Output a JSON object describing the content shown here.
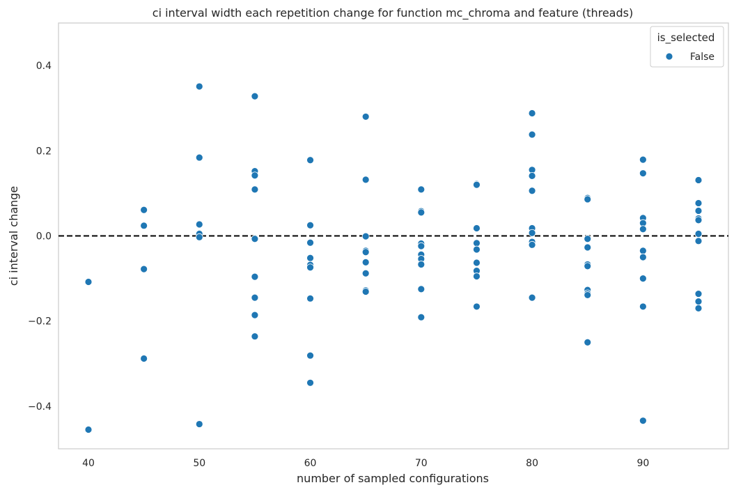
{
  "chart_data": {
    "type": "scatter",
    "title": "ci interval width each repetition change for function mc_chroma and feature (threads)",
    "xlabel": "number of sampled configurations",
    "ylabel": "ci interval change",
    "xlim": [
      37.3,
      97.7
    ],
    "ylim": [
      -0.5,
      0.5
    ],
    "xticks": [
      40,
      50,
      60,
      70,
      80,
      90
    ],
    "yticks": [
      -0.4,
      -0.2,
      0.0,
      0.2,
      0.4
    ],
    "xtick_labels": [
      "40",
      "50",
      "60",
      "70",
      "80",
      "90"
    ],
    "ytick_labels": [
      "−0.4",
      "−0.2",
      "0.0",
      "0.2",
      "0.4"
    ],
    "grid": false,
    "reference_line": {
      "y": 0.0,
      "style": "dashed",
      "color": "#000000"
    },
    "legend": {
      "title": "is_selected",
      "placement": "top-right",
      "entries": [
        "False"
      ]
    },
    "series": [
      {
        "name": "False",
        "color": "#1f77b4",
        "points": [
          [
            40,
            -0.108
          ],
          [
            40,
            -0.455
          ],
          [
            45,
            0.061
          ],
          [
            45,
            0.024
          ],
          [
            45,
            -0.078
          ],
          [
            45,
            -0.288
          ],
          [
            50,
            0.351
          ],
          [
            50,
            0.184
          ],
          [
            50,
            0.027
          ],
          [
            50,
            0.005
          ],
          [
            50,
            -0.003
          ],
          [
            50,
            -0.442
          ],
          [
            55,
            0.328
          ],
          [
            55,
            0.152
          ],
          [
            55,
            0.142
          ],
          [
            55,
            0.109
          ],
          [
            55,
            -0.007
          ],
          [
            55,
            -0.096
          ],
          [
            55,
            -0.145
          ],
          [
            55,
            -0.186
          ],
          [
            55,
            -0.236
          ],
          [
            60,
            0.178
          ],
          [
            60,
            0.025
          ],
          [
            60,
            -0.016
          ],
          [
            60,
            -0.052
          ],
          [
            60,
            -0.068
          ],
          [
            60,
            -0.074
          ],
          [
            60,
            -0.147
          ],
          [
            60,
            -0.281
          ],
          [
            60,
            -0.345
          ],
          [
            65,
            0.28
          ],
          [
            65,
            0.132
          ],
          [
            65,
            -0.001
          ],
          [
            65,
            -0.035
          ],
          [
            65,
            -0.038
          ],
          [
            65,
            -0.062
          ],
          [
            65,
            -0.088
          ],
          [
            65,
            -0.128
          ],
          [
            65,
            -0.131
          ],
          [
            70,
            0.109
          ],
          [
            70,
            0.058
          ],
          [
            70,
            0.055
          ],
          [
            70,
            -0.018
          ],
          [
            70,
            -0.024
          ],
          [
            70,
            -0.044
          ],
          [
            70,
            -0.054
          ],
          [
            70,
            -0.067
          ],
          [
            70,
            -0.125
          ],
          [
            70,
            -0.191
          ],
          [
            75,
            0.122
          ],
          [
            75,
            0.12
          ],
          [
            75,
            0.018
          ],
          [
            75,
            -0.017
          ],
          [
            75,
            -0.032
          ],
          [
            75,
            -0.063
          ],
          [
            75,
            -0.082
          ],
          [
            75,
            -0.095
          ],
          [
            75,
            -0.166
          ],
          [
            80,
            0.288
          ],
          [
            80,
            0.238
          ],
          [
            80,
            0.155
          ],
          [
            80,
            0.141
          ],
          [
            80,
            0.106
          ],
          [
            80,
            0.018
          ],
          [
            80,
            0.007
          ],
          [
            80,
            -0.014
          ],
          [
            80,
            -0.021
          ],
          [
            80,
            -0.145
          ],
          [
            85,
            0.089
          ],
          [
            85,
            0.086
          ],
          [
            85,
            -0.007
          ],
          [
            85,
            -0.027
          ],
          [
            85,
            -0.067
          ],
          [
            85,
            -0.071
          ],
          [
            85,
            -0.127
          ],
          [
            85,
            -0.135
          ],
          [
            85,
            -0.139
          ],
          [
            85,
            -0.25
          ],
          [
            90,
            0.179
          ],
          [
            90,
            0.147
          ],
          [
            90,
            0.042
          ],
          [
            90,
            0.03
          ],
          [
            90,
            0.016
          ],
          [
            90,
            -0.035
          ],
          [
            90,
            -0.05
          ],
          [
            90,
            -0.1
          ],
          [
            90,
            -0.166
          ],
          [
            90,
            -0.434
          ],
          [
            95,
            0.131
          ],
          [
            95,
            0.077
          ],
          [
            95,
            0.059
          ],
          [
            95,
            0.041
          ],
          [
            95,
            0.037
          ],
          [
            95,
            0.005
          ],
          [
            95,
            -0.012
          ],
          [
            95,
            -0.136
          ],
          [
            95,
            -0.154
          ],
          [
            95,
            -0.17
          ]
        ]
      }
    ]
  }
}
